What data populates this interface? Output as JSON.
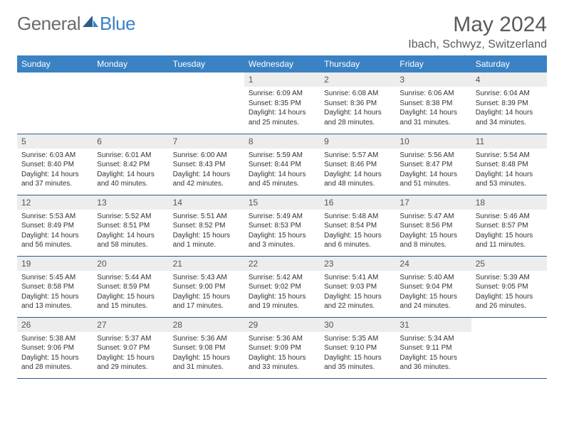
{
  "logo": {
    "word1": "General",
    "word2": "Blue"
  },
  "title": "May 2024",
  "location": "Ibach, Schwyz, Switzerland",
  "colors": {
    "header_bg": "#3b82c4",
    "header_text": "#ffffff",
    "daynum_bg": "#ededed",
    "border": "#2d5a8c",
    "logo_gray": "#6b6b6b",
    "logo_blue": "#3b82c4"
  },
  "weekdays": [
    "Sunday",
    "Monday",
    "Tuesday",
    "Wednesday",
    "Thursday",
    "Friday",
    "Saturday"
  ],
  "weeks": [
    [
      {
        "n": "",
        "sr": "",
        "ss": "",
        "dl": ""
      },
      {
        "n": "",
        "sr": "",
        "ss": "",
        "dl": ""
      },
      {
        "n": "",
        "sr": "",
        "ss": "",
        "dl": ""
      },
      {
        "n": "1",
        "sr": "6:09 AM",
        "ss": "8:35 PM",
        "dl": "14 hours and 25 minutes."
      },
      {
        "n": "2",
        "sr": "6:08 AM",
        "ss": "8:36 PM",
        "dl": "14 hours and 28 minutes."
      },
      {
        "n": "3",
        "sr": "6:06 AM",
        "ss": "8:38 PM",
        "dl": "14 hours and 31 minutes."
      },
      {
        "n": "4",
        "sr": "6:04 AM",
        "ss": "8:39 PM",
        "dl": "14 hours and 34 minutes."
      }
    ],
    [
      {
        "n": "5",
        "sr": "6:03 AM",
        "ss": "8:40 PM",
        "dl": "14 hours and 37 minutes."
      },
      {
        "n": "6",
        "sr": "6:01 AM",
        "ss": "8:42 PM",
        "dl": "14 hours and 40 minutes."
      },
      {
        "n": "7",
        "sr": "6:00 AM",
        "ss": "8:43 PM",
        "dl": "14 hours and 42 minutes."
      },
      {
        "n": "8",
        "sr": "5:59 AM",
        "ss": "8:44 PM",
        "dl": "14 hours and 45 minutes."
      },
      {
        "n": "9",
        "sr": "5:57 AM",
        "ss": "8:46 PM",
        "dl": "14 hours and 48 minutes."
      },
      {
        "n": "10",
        "sr": "5:56 AM",
        "ss": "8:47 PM",
        "dl": "14 hours and 51 minutes."
      },
      {
        "n": "11",
        "sr": "5:54 AM",
        "ss": "8:48 PM",
        "dl": "14 hours and 53 minutes."
      }
    ],
    [
      {
        "n": "12",
        "sr": "5:53 AM",
        "ss": "8:49 PM",
        "dl": "14 hours and 56 minutes."
      },
      {
        "n": "13",
        "sr": "5:52 AM",
        "ss": "8:51 PM",
        "dl": "14 hours and 58 minutes."
      },
      {
        "n": "14",
        "sr": "5:51 AM",
        "ss": "8:52 PM",
        "dl": "15 hours and 1 minute."
      },
      {
        "n": "15",
        "sr": "5:49 AM",
        "ss": "8:53 PM",
        "dl": "15 hours and 3 minutes."
      },
      {
        "n": "16",
        "sr": "5:48 AM",
        "ss": "8:54 PM",
        "dl": "15 hours and 6 minutes."
      },
      {
        "n": "17",
        "sr": "5:47 AM",
        "ss": "8:56 PM",
        "dl": "15 hours and 8 minutes."
      },
      {
        "n": "18",
        "sr": "5:46 AM",
        "ss": "8:57 PM",
        "dl": "15 hours and 11 minutes."
      }
    ],
    [
      {
        "n": "19",
        "sr": "5:45 AM",
        "ss": "8:58 PM",
        "dl": "15 hours and 13 minutes."
      },
      {
        "n": "20",
        "sr": "5:44 AM",
        "ss": "8:59 PM",
        "dl": "15 hours and 15 minutes."
      },
      {
        "n": "21",
        "sr": "5:43 AM",
        "ss": "9:00 PM",
        "dl": "15 hours and 17 minutes."
      },
      {
        "n": "22",
        "sr": "5:42 AM",
        "ss": "9:02 PM",
        "dl": "15 hours and 19 minutes."
      },
      {
        "n": "23",
        "sr": "5:41 AM",
        "ss": "9:03 PM",
        "dl": "15 hours and 22 minutes."
      },
      {
        "n": "24",
        "sr": "5:40 AM",
        "ss": "9:04 PM",
        "dl": "15 hours and 24 minutes."
      },
      {
        "n": "25",
        "sr": "5:39 AM",
        "ss": "9:05 PM",
        "dl": "15 hours and 26 minutes."
      }
    ],
    [
      {
        "n": "26",
        "sr": "5:38 AM",
        "ss": "9:06 PM",
        "dl": "15 hours and 28 minutes."
      },
      {
        "n": "27",
        "sr": "5:37 AM",
        "ss": "9:07 PM",
        "dl": "15 hours and 29 minutes."
      },
      {
        "n": "28",
        "sr": "5:36 AM",
        "ss": "9:08 PM",
        "dl": "15 hours and 31 minutes."
      },
      {
        "n": "29",
        "sr": "5:36 AM",
        "ss": "9:09 PM",
        "dl": "15 hours and 33 minutes."
      },
      {
        "n": "30",
        "sr": "5:35 AM",
        "ss": "9:10 PM",
        "dl": "15 hours and 35 minutes."
      },
      {
        "n": "31",
        "sr": "5:34 AM",
        "ss": "9:11 PM",
        "dl": "15 hours and 36 minutes."
      },
      {
        "n": "",
        "sr": "",
        "ss": "",
        "dl": ""
      }
    ]
  ],
  "labels": {
    "sunrise": "Sunrise:",
    "sunset": "Sunset:",
    "daylight": "Daylight:"
  }
}
